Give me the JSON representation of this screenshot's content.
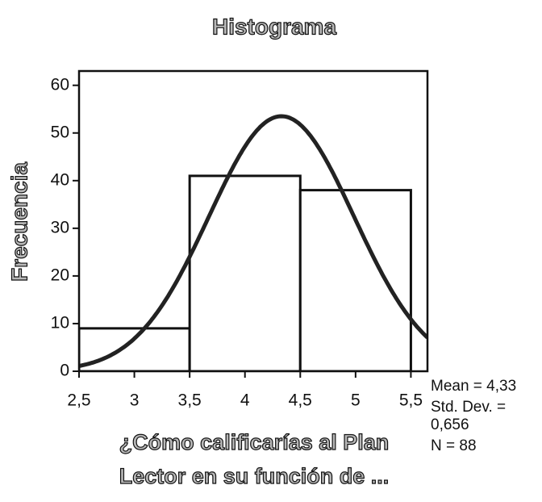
{
  "chart_data": {
    "type": "histogram",
    "title": "Histograma",
    "ylabel": "Frecuencia",
    "xlabel": [
      "¿Cómo calificarías al Plan",
      "Lector en su función de ..."
    ],
    "bins": [
      2.5,
      3.5,
      4.5,
      5.5
    ],
    "values": [
      9,
      41,
      38
    ],
    "color": "#ffffff",
    "curve_color": "#222222",
    "xlim": [
      2.5,
      5.65
    ],
    "ylim": [
      0,
      63
    ],
    "xticks": [
      {
        "value": 2.5,
        "label": "2,5"
      },
      3,
      {
        "value": 3.5,
        "label": "3,5"
      },
      4,
      {
        "value": 4.5,
        "label": "4,5"
      },
      5,
      {
        "value": 5.5,
        "label": "5,5"
      }
    ],
    "yticks": [
      0,
      10,
      20,
      30,
      40,
      50,
      60
    ],
    "stats": [
      {
        "label": "Mean = 4,33",
        "value": 4.33
      },
      {
        "label": "Std. Dev. = 0,656",
        "value": 0.656
      },
      {
        "label": "N = 88",
        "value": 88
      }
    ]
  }
}
